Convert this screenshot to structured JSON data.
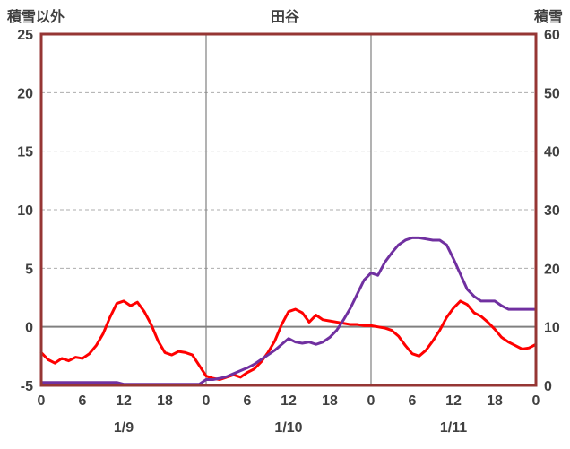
{
  "header": {
    "left_axis_title": "積雪以外",
    "chart_title": "田谷",
    "right_axis_title": "積雪"
  },
  "chart_data": {
    "type": "line",
    "title": "田谷",
    "left_axis": {
      "title": "積雪以外",
      "min": -5,
      "max": 25,
      "ticks": [
        25,
        20,
        15,
        10,
        5,
        0,
        -5
      ]
    },
    "right_axis": {
      "title": "積雪",
      "min": 0,
      "max": 60,
      "ticks": [
        60,
        50,
        40,
        30,
        20,
        10,
        0
      ]
    },
    "x_axis": {
      "hours_total": 72,
      "tick_interval_hours": 6,
      "hour_tick_labels": [
        "0",
        "6",
        "12",
        "18",
        "0",
        "6",
        "12",
        "18",
        "0",
        "6",
        "12",
        "18",
        "0"
      ],
      "day_labels": [
        "1/9",
        "1/10",
        "1/11"
      ],
      "day_label_center_hours": [
        12,
        36,
        60
      ]
    },
    "grid": {
      "horizontal_dashed": true,
      "zero_line_solid": true,
      "vertical_day_lines_at_hours": [
        24,
        48
      ]
    },
    "series": [
      {
        "id": "non-snow",
        "name": "積雪以外",
        "axis": "left",
        "color": "#FF0000",
        "x_step_hours": 1,
        "values": [
          -2.2,
          -2.8,
          -3.1,
          -2.7,
          -2.9,
          -2.6,
          -2.7,
          -2.3,
          -1.6,
          -0.6,
          0.8,
          2.0,
          2.2,
          1.8,
          2.1,
          1.3,
          0.2,
          -1.2,
          -2.2,
          -2.4,
          -2.1,
          -2.2,
          -2.4,
          -3.3,
          -4.2,
          -4.4,
          -4.5,
          -4.3,
          -4.1,
          -4.3,
          -3.9,
          -3.6,
          -3.0,
          -2.2,
          -1.2,
          0.2,
          1.3,
          1.5,
          1.2,
          0.4,
          1.0,
          0.6,
          0.5,
          0.4,
          0.3,
          0.2,
          0.2,
          0.1,
          0.1,
          0.0,
          -0.1,
          -0.3,
          -0.8,
          -1.6,
          -2.3,
          -2.5,
          -2.0,
          -1.2,
          -0.3,
          0.8,
          1.6,
          2.2,
          1.9,
          1.2,
          0.9,
          0.4,
          -0.2,
          -0.9,
          -1.3,
          -1.6,
          -1.9,
          -1.8,
          -1.5
        ]
      },
      {
        "id": "snow-depth",
        "name": "積雪",
        "axis": "right",
        "color": "#7030A0",
        "x_step_hours": 1,
        "values": [
          0.5,
          0.5,
          0.5,
          0.5,
          0.5,
          0.5,
          0.5,
          0.5,
          0.5,
          0.5,
          0.5,
          0.5,
          0.2,
          0.2,
          0.2,
          0.2,
          0.2,
          0.2,
          0.2,
          0.2,
          0.2,
          0.2,
          0.2,
          0.2,
          1.0,
          1.0,
          1.2,
          1.5,
          2.0,
          2.5,
          3.0,
          3.6,
          4.4,
          5.2,
          6.0,
          7.0,
          8.0,
          7.4,
          7.2,
          7.4,
          7.0,
          7.4,
          8.2,
          9.4,
          11.2,
          13.2,
          15.6,
          18.0,
          19.2,
          18.8,
          21.0,
          22.6,
          24.0,
          24.8,
          25.2,
          25.2,
          25.0,
          24.8,
          24.8,
          24.0,
          21.6,
          19.0,
          16.4,
          15.2,
          14.4,
          14.4,
          14.4,
          13.6,
          13.0,
          13.0,
          13.0,
          13.0,
          13.0
        ]
      }
    ],
    "colors": {
      "border": "#963634",
      "gridline": "#ADADAD",
      "zero_line": "#808080",
      "day_line": "#808080",
      "tick_text": "#404040",
      "background": "#FFFFFF"
    }
  }
}
